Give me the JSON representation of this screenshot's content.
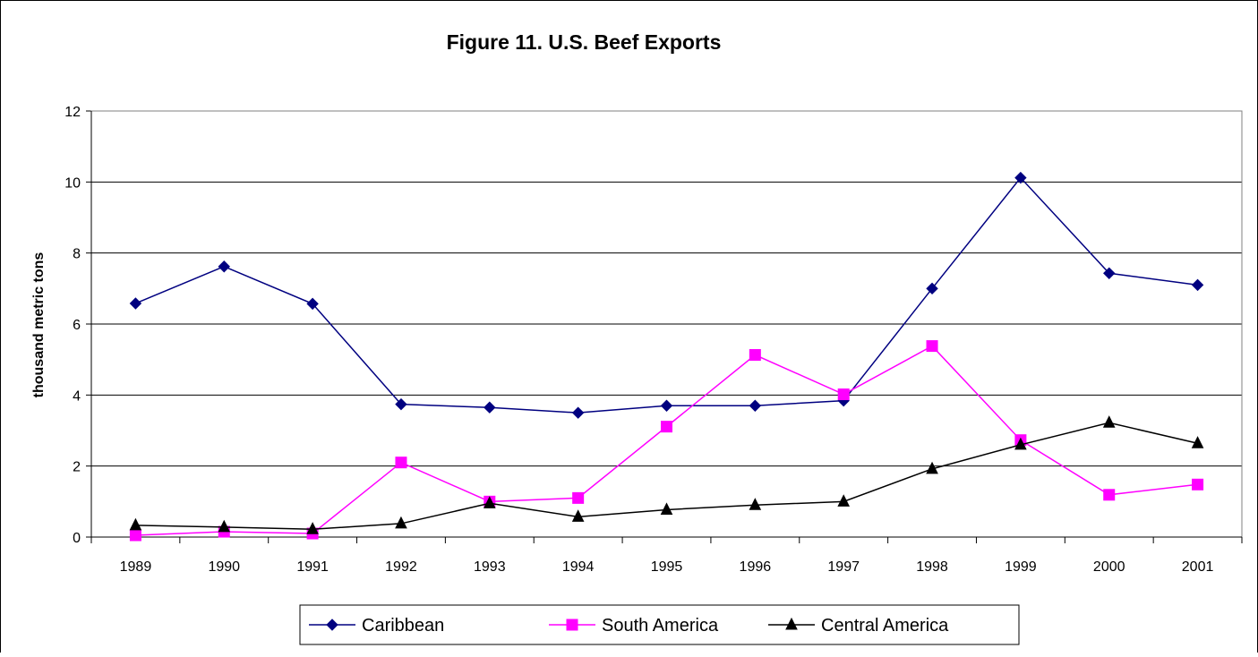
{
  "chart_data": {
    "type": "line",
    "title": "Figure 11. U.S. Beef Exports",
    "xlabel": "",
    "ylabel": "thousand metric tons",
    "categories": [
      "1989",
      "1990",
      "1991",
      "1992",
      "1993",
      "1994",
      "1995",
      "1996",
      "1997",
      "1998",
      "1999",
      "2000",
      "2001"
    ],
    "yticks": [
      "0",
      "2",
      "4",
      "6",
      "8",
      "10",
      "12"
    ],
    "ylim": [
      0,
      12
    ],
    "grid": "horizontal",
    "legend_position": "bottom",
    "series": [
      {
        "name": "Caribbean",
        "color": "#000080",
        "marker": "diamond",
        "values": [
          6.58,
          7.62,
          6.57,
          3.74,
          3.65,
          3.5,
          3.7,
          3.7,
          3.84,
          7.0,
          10.12,
          7.43,
          7.1
        ]
      },
      {
        "name": "South America",
        "color": "#FF00FF",
        "marker": "square",
        "values": [
          0.05,
          0.15,
          0.1,
          2.1,
          1.0,
          1.1,
          3.11,
          5.13,
          4.02,
          5.38,
          2.73,
          1.19,
          1.48
        ]
      },
      {
        "name": "Central America",
        "color": "#000000",
        "marker": "triangle",
        "values": [
          0.33,
          0.28,
          0.22,
          0.38,
          0.95,
          0.57,
          0.77,
          0.9,
          1.0,
          1.92,
          2.6,
          3.22,
          2.64
        ]
      }
    ]
  }
}
